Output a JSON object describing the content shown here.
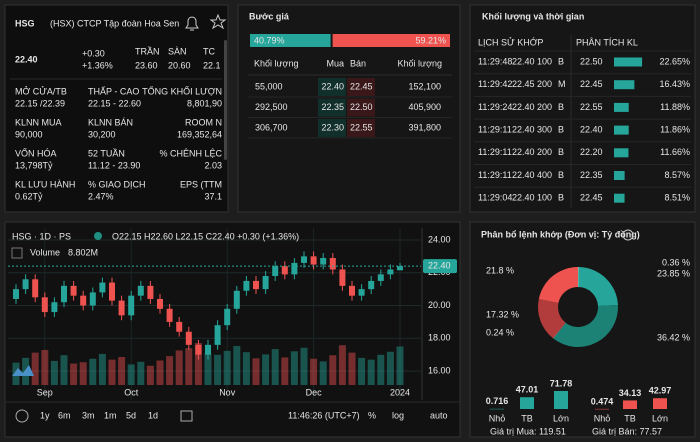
{
  "quote": {
    "symbol": "HSG",
    "exchange_name": "(HSX) CTCP Tập đoàn Hoa Sen",
    "price": "22.40",
    "change": "+0.30",
    "change_pct": "+1.36%",
    "ceiling_label": "TRẦN",
    "ceiling": "23.60",
    "floor_label": "SÀN",
    "floor": "20.60",
    "ref_label": "TC",
    "ref": "22.1",
    "stats": [
      {
        "label": "MỞ CỬA/TB",
        "value": "22.15 /22.39"
      },
      {
        "label": "THẤP - CAO",
        "value": "22.15 - 22.60"
      },
      {
        "label": "TỔNG KHỐI LƯỢN",
        "value": "8,801,90"
      },
      {
        "label": "KLNN MUA",
        "value": "90,000"
      },
      {
        "label": "KLNN BÁN",
        "value": "30,200"
      },
      {
        "label": "ROOM N",
        "value": "169,352,64"
      },
      {
        "label": "VỐN HÓA",
        "value": "13,798Tỷ"
      },
      {
        "label": "52 TUẦN",
        "value": "11.12 - 23.90"
      },
      {
        "label": "% CHÊNH LỆC",
        "value": "2.03"
      },
      {
        "label": "KL LƯU HÀNH",
        "value": "0.62Tỷ"
      },
      {
        "label": "% GIAO DỊCH",
        "value": "2.47%"
      },
      {
        "label": "EPS (TTM",
        "value": "37.1"
      }
    ]
  },
  "order_book": {
    "title": "Bước giá",
    "split": {
      "values": [
        40.79,
        59.21
      ],
      "value_labels": [
        "40.79%",
        "59.21%"
      ],
      "colors": [
        "#26a69a",
        "#ef5350"
      ]
    },
    "headers": [
      "Khối lượng",
      "Mua",
      "Bán",
      "Khối lượng"
    ],
    "rows": [
      [
        "55,000",
        "22.40",
        "22.45",
        "152,100"
      ],
      [
        "292,500",
        "22.35",
        "22.50",
        "405,900"
      ],
      [
        "306,700",
        "22.30",
        "22.55",
        "391,800"
      ]
    ]
  },
  "trades": {
    "title": "Khối lượng và thời gian",
    "history_header": "LỊCH SỬ KHỚP",
    "analysis_header": "PHÂN TÍCH KL",
    "history": [
      [
        "11:29:48",
        "22.40",
        "100",
        "B"
      ],
      [
        "11:29:42",
        "22.45",
        "200",
        "M"
      ],
      [
        "11:29:24",
        "22.40",
        "200",
        "B"
      ],
      [
        "11:29:11",
        "22.40",
        "300",
        "B"
      ],
      [
        "11:29:11",
        "22.40",
        "200",
        "B"
      ],
      [
        "11:29:11",
        "22.40",
        "400",
        "B"
      ],
      [
        "11:29:04",
        "22.40",
        "100",
        "B"
      ]
    ],
    "analysis": {
      "prices": [
        "22.50",
        "22.45",
        "22.55",
        "22.40",
        "22.20",
        "22.35",
        "22.45"
      ],
      "values": [
        22.65,
        16.43,
        11.88,
        11.86,
        11.66,
        8.57,
        8.51
      ],
      "value_labels": [
        "22.65%",
        "16.43%",
        "11.88%",
        "11.86%",
        "11.66%",
        "8.57%",
        "8.51%"
      ],
      "color": "#26a69a"
    }
  },
  "chart_data": [
    {
      "type": "candlestick",
      "header": "HSG · 1D · PS",
      "ohlc_label": "O22.15 H22.60 L22.15 C22.40 +0.30 (+1.36%)",
      "volume_name": "Volume",
      "volume_label": "8.802M",
      "last_price_label": "22.40",
      "categories": [
        null,
        null,
        null,
        "Sep",
        null,
        null,
        null,
        null,
        null,
        null,
        null,
        null,
        "Oct",
        null,
        null,
        null,
        null,
        null,
        null,
        null,
        null,
        null,
        "Nov",
        null,
        null,
        null,
        null,
        null,
        null,
        null,
        null,
        "Dec",
        null,
        null,
        null,
        null,
        null,
        null,
        null,
        null,
        "2024"
      ],
      "open": [
        20.4,
        21.0,
        21.6,
        20.5,
        19.6,
        20.2,
        21.2,
        20.6,
        20.0,
        20.8,
        21.4,
        20.3,
        19.4,
        20.6,
        21.2,
        20.4,
        19.8,
        19.0,
        18.4,
        17.6,
        17.0,
        17.6,
        18.8,
        19.8,
        20.9,
        21.5,
        21.0,
        21.8,
        22.4,
        21.9,
        22.6,
        23.0,
        22.5,
        22.9,
        22.2,
        21.2,
        20.6,
        21.0,
        21.5,
        21.9,
        22.15
      ],
      "high": [
        21.3,
        21.9,
        21.9,
        20.8,
        20.5,
        21.5,
        21.5,
        20.9,
        21.1,
        21.7,
        21.7,
        20.6,
        20.9,
        21.5,
        21.5,
        20.7,
        20.1,
        19.3,
        18.7,
        17.9,
        17.9,
        19.1,
        20.1,
        21.2,
        21.8,
        21.8,
        22.1,
        22.7,
        22.7,
        22.9,
        23.3,
        23.3,
        23.2,
        23.2,
        22.5,
        21.5,
        21.3,
        21.8,
        22.2,
        22.5,
        22.6
      ],
      "low": [
        20.1,
        20.7,
        20.2,
        19.3,
        19.3,
        19.9,
        20.3,
        19.7,
        19.7,
        20.5,
        20.0,
        19.1,
        19.1,
        20.3,
        20.1,
        19.5,
        18.7,
        18.1,
        17.3,
        16.7,
        16.7,
        17.3,
        18.5,
        19.5,
        20.6,
        20.7,
        20.7,
        21.5,
        21.6,
        21.6,
        22.3,
        22.2,
        22.2,
        21.9,
        20.9,
        20.3,
        20.3,
        20.7,
        21.2,
        21.6,
        22.15
      ],
      "close": [
        21.0,
        21.6,
        20.5,
        19.6,
        20.2,
        21.2,
        20.6,
        20.0,
        20.8,
        21.4,
        20.3,
        19.4,
        20.6,
        21.2,
        20.4,
        19.8,
        19.0,
        18.4,
        17.6,
        17.0,
        17.6,
        18.8,
        19.8,
        20.9,
        21.5,
        21.0,
        21.8,
        22.4,
        21.9,
        22.6,
        23.0,
        22.5,
        22.9,
        22.2,
        21.2,
        20.6,
        21.0,
        21.5,
        21.9,
        22.2,
        22.4
      ],
      "volume": [
        5.1,
        6.2,
        7.4,
        8.0,
        5.5,
        6.8,
        4.9,
        5.2,
        6.0,
        7.1,
        5.8,
        6.4,
        4.7,
        5.3,
        4.4,
        5.6,
        6.6,
        7.9,
        8.4,
        9.6,
        7.2,
        6.9,
        7.8,
        8.9,
        7.5,
        6.1,
        7.0,
        8.2,
        6.3,
        7.7,
        8.5,
        6.0,
        5.4,
        6.8,
        9.1,
        7.4,
        6.2,
        5.8,
        6.9,
        7.6,
        8.802
      ],
      "up_color": "#26a69a",
      "down_color": "#ef5350",
      "ylim": [
        15.15,
        24.73
      ],
      "yticks": [
        {
          "value": 16,
          "label": "16.00"
        },
        {
          "value": 18,
          "label": "18.00"
        },
        {
          "value": 20,
          "label": "20.00"
        },
        {
          "value": 22,
          "label": "22.00"
        },
        {
          "value": 24,
          "label": "24.00"
        }
      ],
      "grid": true,
      "ranges": [
        "1y",
        "6m",
        "3m",
        "1m",
        "5d",
        "1d"
      ],
      "time": "11:46:26 (UTC+7)",
      "options": [
        "%",
        "log",
        "auto"
      ]
    },
    {
      "type": "pie",
      "title": "Phân bổ lệnh khớp (Đơn vị: Tỷ đồng)",
      "values": [
        0.36,
        23.85,
        36.42,
        0.24,
        17.32,
        21.8
      ],
      "value_labels": [
        "0.36 %",
        "23.85 %",
        "36.42 %",
        "0.24 %",
        "17.32 %",
        "21.8 %"
      ],
      "colors": [
        "#7fd6c8",
        "#26a69a",
        "#1b8275",
        "#e57373",
        "#b23b3b",
        "#ef5350"
      ]
    },
    {
      "type": "bar",
      "categories": [
        "Nhỏ",
        "TB",
        "Lớn"
      ],
      "series": [
        {
          "color": "#26a69a",
          "values": [
            0.716,
            47.01,
            71.78
          ]
        },
        {
          "color": "#ef5350",
          "values": [
            0.474,
            34.13,
            42.97
          ]
        }
      ],
      "footers": [
        "Giá trị Mua: 119.51",
        "Giá trị Bán: 77.57"
      ]
    }
  ]
}
